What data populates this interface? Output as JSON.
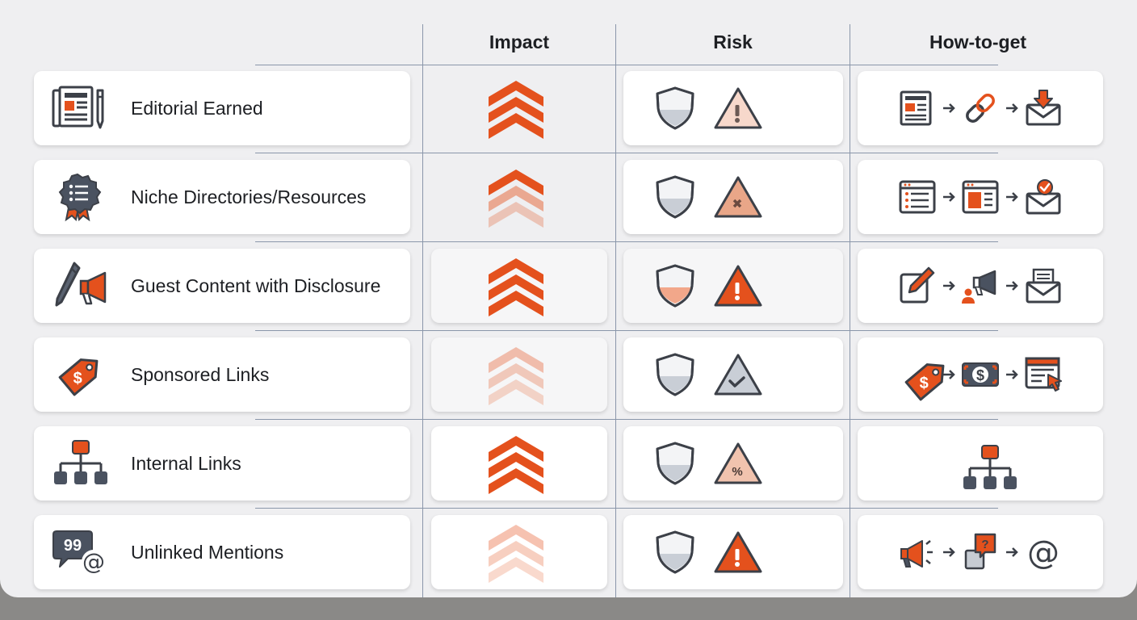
{
  "headers": {
    "impact": "Impact",
    "risk": "Risk",
    "how": "How-to-get"
  },
  "colors": {
    "accent": "#e4511d",
    "accent_light": "#f2a78a",
    "accent_faint": "#f6cdbb",
    "gray": "#c7ccd3",
    "outline": "#3c4048"
  },
  "rows": [
    {
      "label": "Editorial Earned",
      "label_icon": "newspaper-pen-icon",
      "impact": "high",
      "shield_fill": "gray",
      "warning": "exclamation-light",
      "how_icons": [
        "newspaper-icon",
        "chain-link-icon",
        "inbox-download-icon"
      ]
    },
    {
      "label": "Niche Directories/Resources",
      "label_icon": "badge-list-icon",
      "impact": "medium",
      "shield_fill": "gray",
      "warning": "x-mark-medium",
      "how_icons": [
        "list-window-icon",
        "layout-window-icon",
        "envelope-check-icon"
      ]
    },
    {
      "label": "Guest Content with Disclosure",
      "label_icon": "pen-megaphone-icon",
      "impact": "high",
      "shield_fill": "orange",
      "warning": "exclamation-strong",
      "how_icons": [
        "edit-icon",
        "person-megaphone-icon",
        "document-envelope-icon"
      ]
    },
    {
      "label": "Sponsored Links",
      "label_icon": "price-tag-icon",
      "impact": "low",
      "shield_fill": "gray",
      "warning": "check-mark-gray",
      "how_icons": [
        "price-tag-icon",
        "dollar-bill-icon",
        "browser-cursor-icon"
      ]
    },
    {
      "label": "Internal Links",
      "label_icon": "sitemap-icon",
      "impact": "high",
      "shield_fill": "gray",
      "warning": "percent-medium",
      "how_icons": [
        "sitemap-icon"
      ]
    },
    {
      "label": "Unlinked Mentions",
      "label_icon": "quote-at-icon",
      "impact": "low",
      "shield_fill": "gray",
      "warning": "exclamation-strong",
      "how_icons": [
        "megaphone-icon",
        "question-box-icon",
        "at-sign-icon"
      ]
    }
  ]
}
